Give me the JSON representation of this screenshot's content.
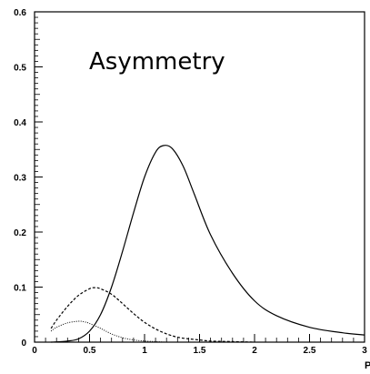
{
  "chart_data": {
    "type": "line",
    "title": "Asymmetry",
    "xlabel": "P",
    "ylabel": "",
    "xlim": [
      0,
      3
    ],
    "ylim": [
      0,
      0.6
    ],
    "grid": false,
    "x_ticks": [
      0,
      0.5,
      1,
      1.5,
      2,
      2.5,
      3
    ],
    "x_tick_labels": [
      "0",
      "0.5",
      "1",
      "1.5",
      "2",
      "2.5",
      "3"
    ],
    "y_ticks": [
      0,
      0.1,
      0.2,
      0.3,
      0.4,
      0.5,
      0.6
    ],
    "y_tick_labels": [
      "0",
      "0.1",
      "0.2",
      "0.3",
      "0.4",
      "0.5",
      "0.6"
    ],
    "series": [
      {
        "style": "solid",
        "x": [
          0.15,
          0.3,
          0.4,
          0.5,
          0.6,
          0.7,
          0.8,
          0.9,
          1.0,
          1.1,
          1.17,
          1.25,
          1.35,
          1.45,
          1.6,
          1.8,
          2.0,
          2.2,
          2.5,
          2.8,
          3.0
        ],
        "y": [
          0.0,
          0.002,
          0.006,
          0.02,
          0.05,
          0.1,
          0.165,
          0.235,
          0.3,
          0.345,
          0.357,
          0.352,
          0.32,
          0.27,
          0.195,
          0.125,
          0.075,
          0.048,
          0.027,
          0.017,
          0.013
        ]
      },
      {
        "style": "dashed",
        "x": [
          0.15,
          0.2,
          0.3,
          0.4,
          0.5,
          0.55,
          0.6,
          0.7,
          0.8,
          0.9,
          1.0,
          1.1,
          1.2,
          1.3,
          1.4,
          1.5,
          1.6,
          1.8,
          2.0
        ],
        "y": [
          0.025,
          0.04,
          0.065,
          0.085,
          0.097,
          0.099,
          0.097,
          0.087,
          0.07,
          0.052,
          0.036,
          0.024,
          0.015,
          0.009,
          0.006,
          0.004,
          0.002,
          0.001,
          0.0
        ]
      },
      {
        "style": "dotted",
        "x": [
          0.15,
          0.2,
          0.3,
          0.4,
          0.45,
          0.5,
          0.6,
          0.7,
          0.8,
          0.9,
          1.0,
          1.1,
          1.2,
          1.3
        ],
        "y": [
          0.02,
          0.027,
          0.035,
          0.038,
          0.037,
          0.034,
          0.025,
          0.015,
          0.008,
          0.004,
          0.002,
          0.001,
          0.0,
          0.0
        ]
      }
    ]
  }
}
